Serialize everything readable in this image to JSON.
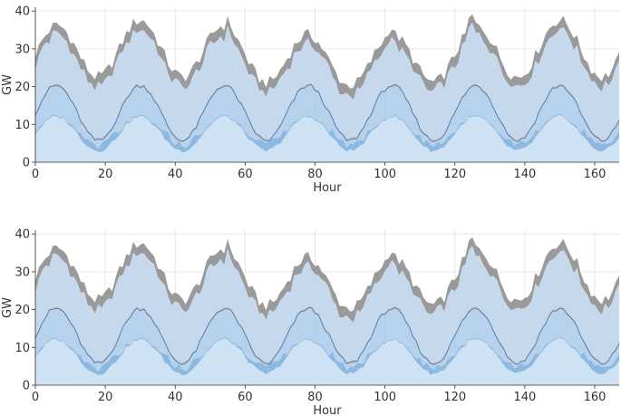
{
  "chart_data": [
    {
      "type": "area",
      "stacked": true,
      "xlabel": "Hour",
      "ylabel": "GW",
      "xlim": [
        0,
        167
      ],
      "ylim": [
        0,
        41
      ],
      "xticks": [
        0,
        20,
        40,
        60,
        80,
        100,
        120,
        140,
        160
      ],
      "yticks": [
        0,
        10,
        20,
        30,
        40
      ],
      "grid": true,
      "legend": null,
      "series": [
        {
          "color": "#cfe2f3",
          "opacity": 1.0
        },
        {
          "color": "#5b9bd5",
          "opacity": 0.7
        },
        {
          "color": "#9dc3e6",
          "opacity": 0.75
        },
        {
          "color": "#c8c8c8",
          "opacity": 1.0
        },
        {
          "color": "#c6d9ec",
          "opacity": 1.0
        },
        {
          "color": "#4472c4",
          "opacity": 0.3
        },
        {
          "color": "#9a9a9a",
          "opacity": 1.0
        }
      ],
      "line_color": "#4a7fc0"
    },
    {
      "type": "area",
      "stacked": true,
      "xlabel": "Hour",
      "ylabel": "GW",
      "xlim": [
        0,
        167
      ],
      "ylim": [
        0,
        41
      ],
      "xticks": [
        0,
        20,
        40,
        60,
        80,
        100,
        120,
        140,
        160
      ],
      "yticks": [
        0,
        10,
        20,
        30,
        40
      ],
      "grid": true,
      "legend": null,
      "series": [
        {
          "color": "#cfe2f3",
          "opacity": 1.0
        },
        {
          "color": "#5b9bd5",
          "opacity": 0.7
        },
        {
          "color": "#9dc3e6",
          "opacity": 0.75
        },
        {
          "color": "#c8c8c8",
          "opacity": 1.0
        },
        {
          "color": "#c6d9ec",
          "opacity": 1.0
        },
        {
          "color": "#4472c4",
          "opacity": 0.3
        },
        {
          "color": "#9a9a9a",
          "opacity": 1.0
        }
      ],
      "line_color": "#4a7fc0"
    }
  ]
}
